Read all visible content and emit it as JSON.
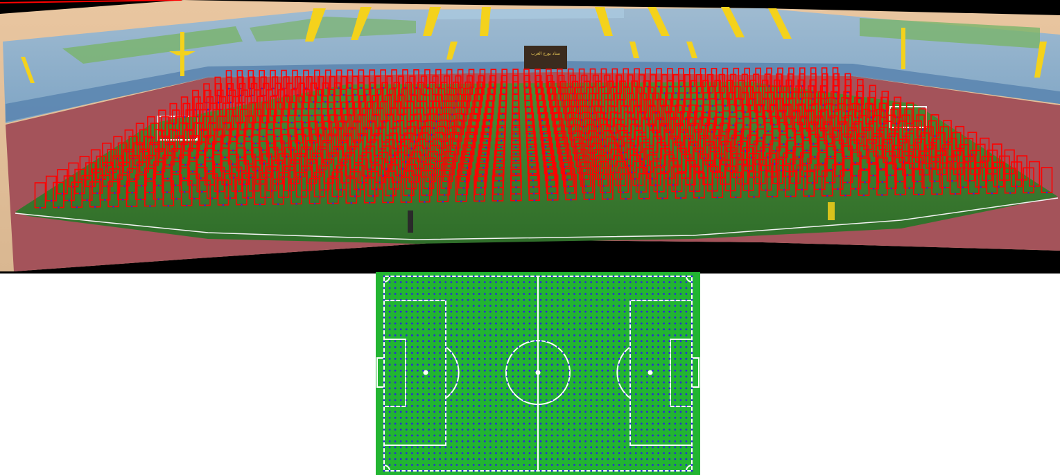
{
  "scene": {
    "panorama_label": "stadium-panorama-with-grid-overlay",
    "sign_text": "ستاد بورج العرب"
  },
  "colors": {
    "background_bottom": "#ffffff",
    "panorama_border": "#000000",
    "sky": "#e7c9a6",
    "stands": "#8fb3cf",
    "stand_pattern": "#78b26a",
    "stand_pillars": "#f4d21c",
    "track": "#9c4e55",
    "field": "#3f7c32",
    "grid_box": "#ff0000",
    "grid_point": "#2a2ad8",
    "pitch": "#22b531",
    "pitch_lines": "#ffffff",
    "pitch_points": "#2a2ad8"
  },
  "overlay": {
    "grid_columns": 56,
    "grid_rows": 18
  },
  "pitch": {
    "grid_columns": 56,
    "grid_rows": 34
  }
}
